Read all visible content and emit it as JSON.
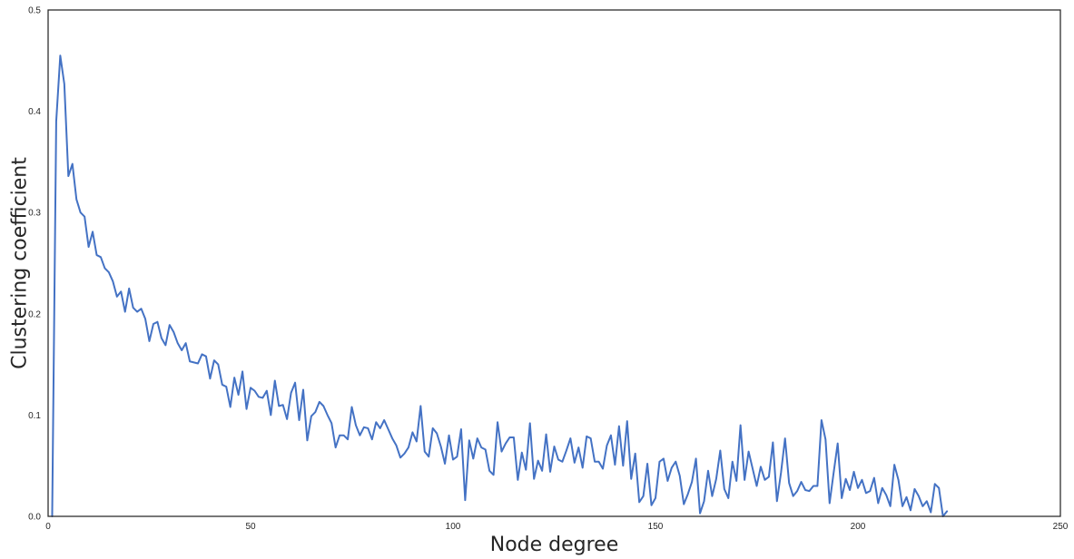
{
  "chart_data": {
    "type": "line",
    "title": "",
    "xlabel": "Node degree",
    "ylabel": "Clustering coefficient",
    "xlim": [
      0,
      250
    ],
    "ylim": [
      0.0,
      0.5
    ],
    "grid": false,
    "x_ticks": [
      0,
      50,
      100,
      150,
      200,
      250
    ],
    "x_tick_labels": [
      "0",
      "50",
      "100",
      "150",
      "200",
      "250"
    ],
    "y_ticks": [
      0.0,
      0.1,
      0.2,
      0.3,
      0.4,
      0.5
    ],
    "y_tick_labels": [
      "0.0",
      "0.1",
      "0.2",
      "0.3",
      "0.4",
      "0.5"
    ],
    "colors": {
      "line": "#4472c4",
      "axes": "#262626",
      "background": "#ffffff"
    },
    "series": [
      {
        "values": [
          0.0,
          0.39,
          0.455,
          0.427,
          0.336,
          0.348,
          0.313,
          0.3,
          0.296,
          0.266,
          0.281,
          0.258,
          0.256,
          0.245,
          0.241,
          0.232,
          0.217,
          0.222,
          0.202,
          0.225,
          0.206,
          0.202,
          0.205,
          0.195,
          0.173,
          0.19,
          0.192,
          0.176,
          0.169,
          0.189,
          0.182,
          0.171,
          0.164,
          0.171,
          0.153,
          0.152,
          0.151,
          0.16,
          0.158,
          0.136,
          0.154,
          0.15,
          0.13,
          0.128,
          0.108,
          0.137,
          0.12,
          0.143,
          0.106,
          0.127,
          0.124,
          0.118,
          0.117,
          0.124,
          0.1,
          0.134,
          0.109,
          0.11,
          0.096,
          0.122,
          0.132,
          0.095,
          0.125,
          0.075,
          0.099,
          0.103,
          0.113,
          0.109,
          0.1,
          0.092,
          0.068,
          0.08,
          0.08,
          0.076,
          0.108,
          0.09,
          0.08,
          0.088,
          0.087,
          0.076,
          0.093,
          0.087,
          0.095,
          0.086,
          0.077,
          0.07,
          0.058,
          0.062,
          0.068,
          0.083,
          0.074,
          0.109,
          0.064,
          0.059,
          0.087,
          0.082,
          0.069,
          0.052,
          0.08,
          0.056,
          0.059,
          0.086,
          0.016,
          0.075,
          0.057,
          0.077,
          0.068,
          0.066,
          0.045,
          0.041,
          0.093,
          0.064,
          0.072,
          0.078,
          0.078,
          0.036,
          0.063,
          0.046,
          0.092,
          0.037,
          0.055,
          0.045,
          0.081,
          0.044,
          0.069,
          0.056,
          0.054,
          0.065,
          0.077,
          0.053,
          0.068,
          0.048,
          0.079,
          0.077,
          0.054,
          0.054,
          0.047,
          0.07,
          0.08,
          0.051,
          0.089,
          0.05,
          0.094,
          0.037,
          0.062,
          0.014,
          0.02,
          0.052,
          0.011,
          0.018,
          0.054,
          0.057,
          0.035,
          0.048,
          0.054,
          0.04,
          0.012,
          0.022,
          0.034,
          0.057,
          0.003,
          0.015,
          0.045,
          0.02,
          0.037,
          0.065,
          0.027,
          0.018,
          0.054,
          0.035,
          0.09,
          0.036,
          0.064,
          0.047,
          0.03,
          0.049,
          0.036,
          0.039,
          0.073,
          0.015,
          0.043,
          0.077,
          0.033,
          0.02,
          0.025,
          0.034,
          0.026,
          0.025,
          0.03,
          0.03,
          0.095,
          0.076,
          0.013,
          0.043,
          0.072,
          0.018,
          0.037,
          0.026,
          0.044,
          0.028,
          0.036,
          0.023,
          0.025,
          0.038,
          0.013,
          0.028,
          0.021,
          0.01,
          0.051,
          0.036,
          0.01,
          0.019,
          0.006,
          0.027,
          0.02,
          0.01,
          0.015,
          0.004,
          0.032,
          0.028,
          0.0,
          0.005
        ]
      }
    ]
  }
}
